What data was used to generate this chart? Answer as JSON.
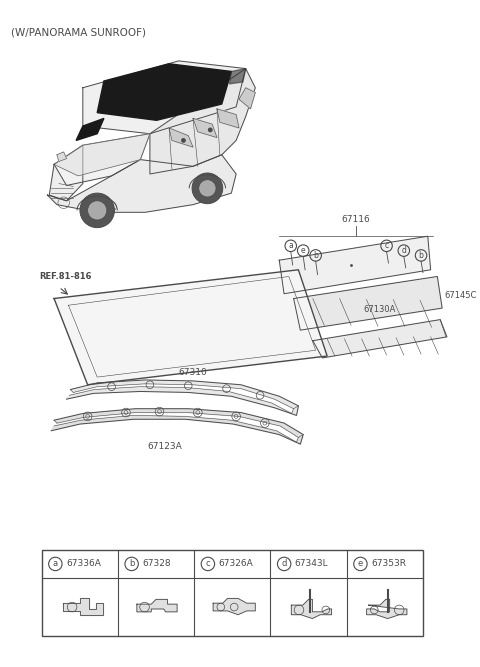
{
  "title": "(W/PANORAMA SUNROOF)",
  "background_color": "#ffffff",
  "line_color": "#4a4a4a",
  "figsize": [
    4.8,
    6.67
  ],
  "dpi": 100,
  "callout_labels": [
    {
      "letter": "a",
      "part": "67336A"
    },
    {
      "letter": "b",
      "part": "67328"
    },
    {
      "letter": "c",
      "part": "67326A"
    },
    {
      "letter": "d",
      "part": "67343L"
    },
    {
      "letter": "e",
      "part": "67353R"
    }
  ]
}
